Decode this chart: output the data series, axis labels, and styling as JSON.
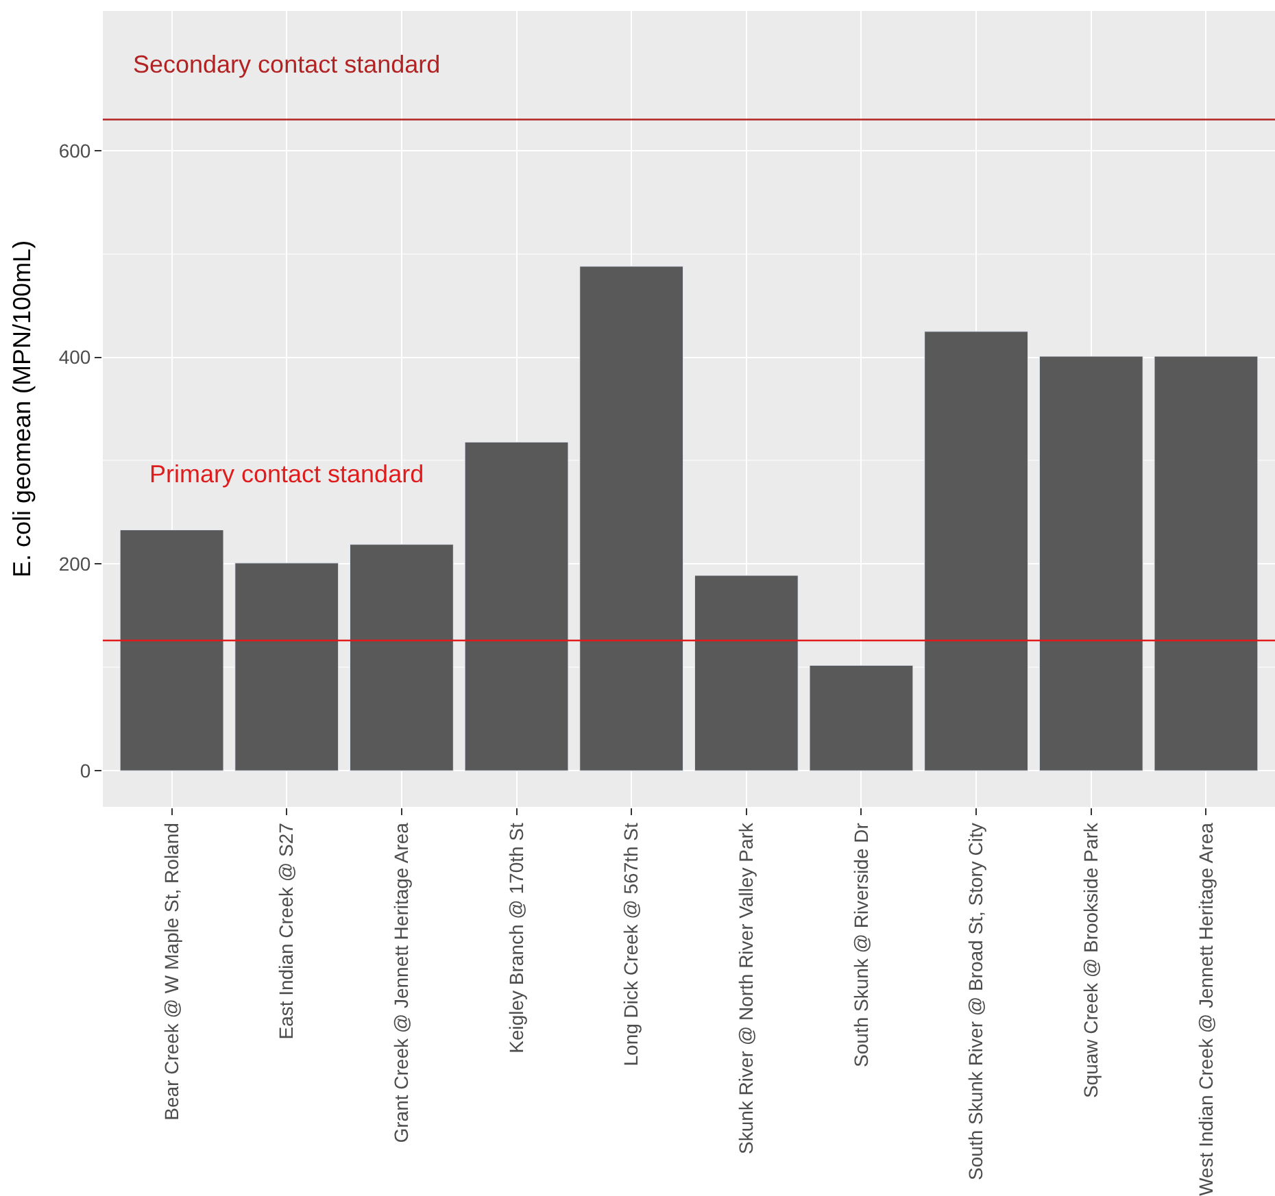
{
  "chart_data": {
    "type": "bar",
    "ylabel": "E. coli geomean (MPN/100mL)",
    "categories": [
      "Bear Creek @ W Maple St, Roland",
      "East Indian Creek @ S27",
      "Grant Creek @ Jennett Heritage Area",
      "Keigley Branch @ 170th St",
      "Long Dick Creek @ 567th St",
      "Skunk River @ North River Valley Park",
      "South Skunk @ Riverside Dr",
      "South Skunk River @ Broad St, Story City",
      "Squaw Creek @ Brookside Park",
      "West Indian Creek @ Jennett Heritage Area"
    ],
    "values": [
      233,
      201,
      219,
      318,
      488,
      189,
      102,
      425,
      401,
      401
    ],
    "color": "#595959",
    "ylim": [
      -35,
      735
    ],
    "yticks": [
      0,
      200,
      400,
      600
    ],
    "grid": true,
    "ref_lines": [
      {
        "axis": "y",
        "value": 126,
        "color": "#e01b1b"
      },
      {
        "axis": "y",
        "value": 630,
        "color": "#b22222"
      }
    ],
    "annotations": [
      "Primary contact standard",
      "Secondary contact standard"
    ]
  }
}
